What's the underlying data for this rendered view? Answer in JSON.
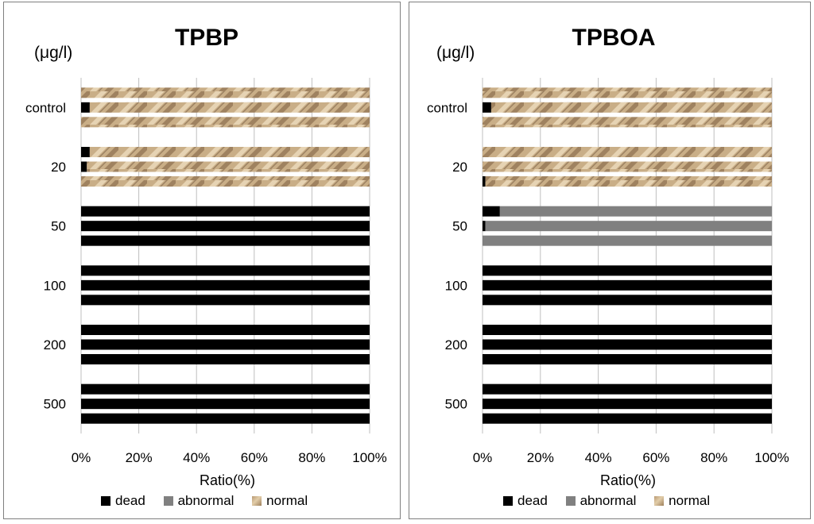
{
  "chart_data": [
    {
      "type": "bar",
      "orientation": "horizontal-stacked-100",
      "title": "TPBP",
      "ylabel": "(μg/l)",
      "xlabel": "Ratio(%)",
      "xlim": [
        0,
        100
      ],
      "xticks": [
        "0%",
        "20%",
        "40%",
        "60%",
        "80%",
        "100%"
      ],
      "categories": [
        "control",
        "20",
        "50",
        "100",
        "200",
        "500"
      ],
      "replicates_per_category": 3,
      "legend": [
        {
          "key": "dead",
          "label": "dead",
          "color": "#000000"
        },
        {
          "key": "abnormal",
          "label": "abnormal",
          "color": "#808080"
        },
        {
          "key": "normal",
          "label": "normal",
          "color": "#c8ad86"
        }
      ],
      "bars": [
        {
          "category": "control",
          "dead": 0,
          "abnormal": 0,
          "normal": 100
        },
        {
          "category": "control",
          "dead": 3,
          "abnormal": 0,
          "normal": 97
        },
        {
          "category": "control",
          "dead": 0,
          "abnormal": 0,
          "normal": 100
        },
        {
          "category": "20",
          "dead": 3,
          "abnormal": 0,
          "normal": 97
        },
        {
          "category": "20",
          "dead": 2,
          "abnormal": 0,
          "normal": 98
        },
        {
          "category": "20",
          "dead": 0,
          "abnormal": 0,
          "normal": 100
        },
        {
          "category": "50",
          "dead": 100,
          "abnormal": 0,
          "normal": 0
        },
        {
          "category": "50",
          "dead": 100,
          "abnormal": 0,
          "normal": 0
        },
        {
          "category": "50",
          "dead": 100,
          "abnormal": 0,
          "normal": 0
        },
        {
          "category": "100",
          "dead": 100,
          "abnormal": 0,
          "normal": 0
        },
        {
          "category": "100",
          "dead": 100,
          "abnormal": 0,
          "normal": 0
        },
        {
          "category": "100",
          "dead": 100,
          "abnormal": 0,
          "normal": 0
        },
        {
          "category": "200",
          "dead": 100,
          "abnormal": 0,
          "normal": 0
        },
        {
          "category": "200",
          "dead": 100,
          "abnormal": 0,
          "normal": 0
        },
        {
          "category": "200",
          "dead": 100,
          "abnormal": 0,
          "normal": 0
        },
        {
          "category": "500",
          "dead": 100,
          "abnormal": 0,
          "normal": 0
        },
        {
          "category": "500",
          "dead": 100,
          "abnormal": 0,
          "normal": 0
        },
        {
          "category": "500",
          "dead": 100,
          "abnormal": 0,
          "normal": 0
        }
      ]
    },
    {
      "type": "bar",
      "orientation": "horizontal-stacked-100",
      "title": "TPBOA",
      "ylabel": "(μg/l)",
      "xlabel": "Ratio(%)",
      "xlim": [
        0,
        100
      ],
      "xticks": [
        "0%",
        "20%",
        "40%",
        "60%",
        "80%",
        "100%"
      ],
      "categories": [
        "control",
        "20",
        "50",
        "100",
        "200",
        "500"
      ],
      "replicates_per_category": 3,
      "legend": [
        {
          "key": "dead",
          "label": "dead",
          "color": "#000000"
        },
        {
          "key": "abnormal",
          "label": "abnormal",
          "color": "#808080"
        },
        {
          "key": "normal",
          "label": "normal",
          "color": "#c8ad86"
        }
      ],
      "bars": [
        {
          "category": "control",
          "dead": 0,
          "abnormal": 0,
          "normal": 100
        },
        {
          "category": "control",
          "dead": 3,
          "abnormal": 0,
          "normal": 97
        },
        {
          "category": "control",
          "dead": 0,
          "abnormal": 0,
          "normal": 100
        },
        {
          "category": "20",
          "dead": 0,
          "abnormal": 0,
          "normal": 100
        },
        {
          "category": "20",
          "dead": 0,
          "abnormal": 0,
          "normal": 100
        },
        {
          "category": "20",
          "dead": 1,
          "abnormal": 0,
          "normal": 99
        },
        {
          "category": "50",
          "dead": 6,
          "abnormal": 94,
          "normal": 0
        },
        {
          "category": "50",
          "dead": 1,
          "abnormal": 99,
          "normal": 0
        },
        {
          "category": "50",
          "dead": 0,
          "abnormal": 100,
          "normal": 0
        },
        {
          "category": "100",
          "dead": 100,
          "abnormal": 0,
          "normal": 0
        },
        {
          "category": "100",
          "dead": 100,
          "abnormal": 0,
          "normal": 0
        },
        {
          "category": "100",
          "dead": 100,
          "abnormal": 0,
          "normal": 0
        },
        {
          "category": "200",
          "dead": 100,
          "abnormal": 0,
          "normal": 0
        },
        {
          "category": "200",
          "dead": 100,
          "abnormal": 0,
          "normal": 0
        },
        {
          "category": "200",
          "dead": 100,
          "abnormal": 0,
          "normal": 0
        },
        {
          "category": "500",
          "dead": 100,
          "abnormal": 0,
          "normal": 0
        },
        {
          "category": "500",
          "dead": 100,
          "abnormal": 0,
          "normal": 0
        },
        {
          "category": "500",
          "dead": 100,
          "abnormal": 0,
          "normal": 0
        }
      ]
    }
  ]
}
